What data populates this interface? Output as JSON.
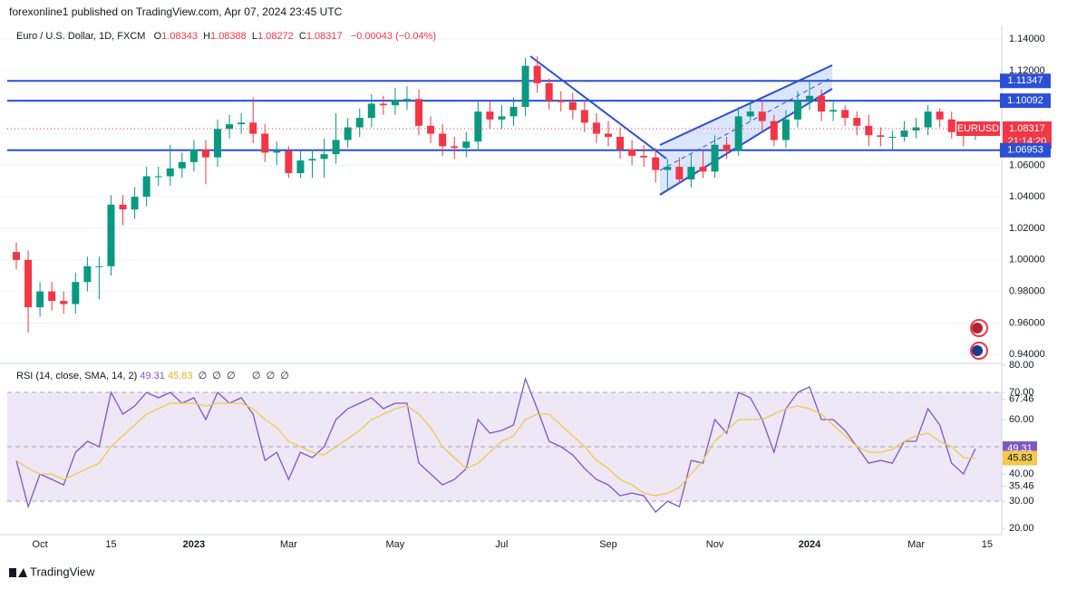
{
  "header": {
    "publisher": "forexonline1 published on TradingView.com, Apr 07, 2024 23:45 UTC",
    "footer": "TradingView"
  },
  "chart_data": [
    {
      "type": "candlestick",
      "title": "Euro / U.S. Dollar, 1D, FXCM",
      "legend": [
        {
          "label": "O",
          "value": 1.08343
        },
        {
          "label": "H",
          "value": 1.08388
        },
        {
          "label": "L",
          "value": 1.08272
        },
        {
          "label": "C",
          "value": 1.08317
        }
      ],
      "change": "−0.00043 (−0.04%)",
      "up_color": "#089981",
      "down_color": "#f23645",
      "level_color": "#2b4fd6",
      "categories": [
        null,
        null,
        "Oct",
        null,
        null,
        null,
        null,
        null,
        "15",
        null,
        null,
        null,
        null,
        null,
        null,
        "2023",
        null,
        null,
        null,
        null,
        null,
        null,
        null,
        "Mar",
        null,
        null,
        null,
        null,
        null,
        null,
        null,
        null,
        "May",
        null,
        null,
        null,
        null,
        null,
        null,
        null,
        null,
        "Jul",
        null,
        null,
        null,
        null,
        null,
        null,
        null,
        null,
        "Sep",
        null,
        null,
        null,
        null,
        null,
        null,
        null,
        null,
        "Nov",
        null,
        null,
        null,
        null,
        null,
        null,
        null,
        "2024",
        null,
        null,
        null,
        null,
        null,
        null,
        null,
        null,
        "Mar",
        null,
        null,
        null,
        null,
        null,
        "15"
      ],
      "open": [
        1.005,
        1.0,
        0.97,
        0.98,
        0.974,
        0.972,
        0.986,
        0.996,
        0.996,
        1.035,
        1.032,
        1.04,
        1.053,
        1.053,
        1.058,
        1.062,
        1.07,
        1.065,
        1.083,
        1.086,
        1.087,
        1.08,
        1.068,
        1.069,
        1.055,
        1.063,
        1.064,
        1.067,
        1.076,
        1.084,
        1.09,
        1.099,
        1.098,
        1.101,
        1.102,
        1.085,
        1.08,
        1.072,
        1.071,
        1.075,
        1.094,
        1.089,
        1.091,
        1.097,
        1.123,
        1.112,
        1.101,
        1.1,
        1.095,
        1.087,
        1.08,
        1.078,
        1.07,
        1.066,
        1.065,
        1.057,
        1.059,
        1.051,
        1.059,
        1.056,
        1.073,
        1.069,
        1.091,
        1.094,
        1.088,
        1.076,
        1.089,
        1.101,
        1.104,
        1.094,
        1.095,
        1.09,
        1.085,
        1.079,
        1.078,
        1.078,
        1.082,
        1.084,
        1.094,
        1.089,
        1.081,
        1.079,
        null
      ],
      "high": [
        1.011,
        1.006,
        0.986,
        0.986,
        0.98,
        0.992,
        1.002,
        1.002,
        1.041,
        1.041,
        1.046,
        1.059,
        1.059,
        1.073,
        1.068,
        1.076,
        1.076,
        1.089,
        1.092,
        1.093,
        1.103,
        1.086,
        1.075,
        1.072,
        1.069,
        1.07,
        1.077,
        1.093,
        1.09,
        1.096,
        1.105,
        1.104,
        1.109,
        1.11,
        1.108,
        1.091,
        1.086,
        1.078,
        1.081,
        1.1,
        1.101,
        1.098,
        1.103,
        1.128,
        1.129,
        1.115,
        1.107,
        1.106,
        1.101,
        1.093,
        1.088,
        1.084,
        1.076,
        1.073,
        1.071,
        1.064,
        1.065,
        1.067,
        1.069,
        1.079,
        1.078,
        1.097,
        1.1,
        1.101,
        1.092,
        1.095,
        1.107,
        1.114,
        1.108,
        1.1,
        1.098,
        1.094,
        1.092,
        1.084,
        1.082,
        1.088,
        1.09,
        1.098,
        1.096,
        1.094,
        1.084,
        1.088,
        null
      ],
      "low": [
        0.994,
        0.954,
        0.964,
        0.968,
        0.966,
        0.966,
        0.98,
        0.975,
        0.99,
        1.022,
        1.026,
        1.034,
        1.047,
        1.047,
        1.052,
        1.056,
        1.048,
        1.059,
        1.077,
        1.08,
        1.074,
        1.062,
        1.06,
        1.052,
        1.052,
        1.052,
        1.052,
        1.061,
        1.071,
        1.078,
        1.084,
        1.092,
        1.092,
        1.095,
        1.079,
        1.074,
        1.066,
        1.064,
        1.065,
        1.069,
        1.083,
        1.083,
        1.085,
        1.091,
        1.106,
        1.095,
        1.094,
        1.089,
        1.081,
        1.074,
        1.072,
        1.064,
        1.06,
        1.059,
        1.049,
        1.045,
        1.048,
        1.046,
        1.052,
        1.052,
        1.064,
        1.066,
        1.088,
        1.082,
        1.072,
        1.071,
        1.084,
        1.095,
        1.088,
        1.088,
        1.085,
        1.079,
        1.072,
        1.072,
        1.069,
        1.075,
        1.077,
        1.079,
        1.084,
        1.077,
        1.072,
        1.076,
        null
      ],
      "close": [
        1.0,
        0.97,
        0.98,
        0.974,
        0.972,
        0.986,
        0.996,
        0.996,
        1.035,
        1.032,
        1.04,
        1.053,
        1.053,
        1.058,
        1.062,
        1.07,
        1.065,
        1.083,
        1.086,
        1.087,
        1.08,
        1.068,
        1.069,
        1.055,
        1.063,
        1.064,
        1.067,
        1.076,
        1.084,
        1.09,
        1.099,
        1.098,
        1.101,
        1.102,
        1.085,
        1.08,
        1.072,
        1.071,
        1.075,
        1.094,
        1.089,
        1.091,
        1.097,
        1.123,
        1.112,
        1.101,
        1.1,
        1.095,
        1.087,
        1.08,
        1.078,
        1.07,
        1.066,
        1.065,
        1.057,
        1.059,
        1.051,
        1.059,
        1.056,
        1.073,
        1.069,
        1.091,
        1.094,
        1.088,
        1.076,
        1.089,
        1.101,
        1.104,
        1.094,
        1.095,
        1.09,
        1.085,
        1.079,
        1.078,
        1.078,
        1.082,
        1.084,
        1.094,
        1.089,
        1.081,
        1.079,
        1.083,
        null
      ],
      "levels": [
        1.11347,
        1.10092,
        1.06953
      ],
      "symbol": "EURUSD",
      "last_price": 1.08317,
      "countdown": "21:14:20",
      "ylim": [
        0.935,
        1.1475
      ],
      "yticks": [
        {
          "value": 1.14,
          "label": "1.14000"
        },
        {
          "value": 1.12,
          "label": "1.12000"
        },
        {
          "value": 1.1,
          "label": "1.10000"
        },
        {
          "value": 1.08,
          "label": "1.08000"
        },
        {
          "value": 1.06,
          "label": "1.06000"
        },
        {
          "value": 1.04,
          "label": "1.04000"
        },
        {
          "value": 1.02,
          "label": "1.02000"
        },
        {
          "value": 1.0,
          "label": "1.00000"
        },
        {
          "value": 0.98,
          "label": "0.98000"
        },
        {
          "value": 0.96,
          "label": "0.96000"
        },
        {
          "value": 0.94,
          "label": "0.94000"
        }
      ],
      "grid": true
    },
    {
      "type": "line",
      "title": "RSI (14, close, SMA, 14, 2)",
      "placeholders": [
        "∅  ∅  ∅",
        "∅  ∅  ∅"
      ],
      "series": [
        {
          "name": "RSI",
          "color": "#7e57c2",
          "values": [
            45,
            28,
            40,
            38,
            36,
            48,
            52,
            50,
            70,
            62,
            65,
            70,
            68,
            70,
            66,
            68,
            60,
            70,
            66,
            68,
            62,
            45,
            48,
            38,
            48,
            46,
            50,
            60,
            64,
            66,
            68,
            64,
            66,
            66,
            44,
            40,
            36,
            38,
            42,
            60,
            55,
            56,
            58,
            75,
            64,
            52,
            50,
            47,
            42,
            38,
            36,
            32,
            33,
            32,
            26,
            30,
            28,
            45,
            44,
            60,
            55,
            70,
            68,
            60,
            48,
            64,
            70,
            72,
            60,
            60,
            56,
            50,
            44,
            45,
            44,
            52,
            52,
            64,
            58,
            44,
            40,
            49.31,
            null
          ]
        },
        {
          "name": "SMA",
          "color": "#f2c94c",
          "values": [
            45,
            42,
            40,
            40,
            38,
            40,
            42,
            44,
            50,
            54,
            58,
            62,
            64,
            66,
            66,
            66,
            65,
            66,
            66,
            66,
            64,
            60,
            57,
            52,
            50,
            48,
            47,
            50,
            53,
            56,
            60,
            62,
            64,
            65,
            62,
            57,
            50,
            46,
            42,
            44,
            48,
            52,
            54,
            60,
            62,
            62,
            58,
            54,
            50,
            45,
            42,
            38,
            36,
            33,
            32,
            33,
            35,
            40,
            45,
            52,
            56,
            60,
            60,
            60,
            62,
            64,
            65,
            64,
            62,
            58,
            54,
            50,
            48,
            48,
            49,
            52,
            54,
            55,
            52,
            50,
            46,
            45.83,
            null
          ]
        }
      ],
      "bands": [
        70,
        50,
        30
      ],
      "band_color": "#ede7f6",
      "ylim": [
        17.7,
        80
      ],
      "yticks": [
        {
          "value": 80,
          "label": "80.00"
        },
        {
          "value": 70,
          "label": "70.00"
        },
        67.46,
        {
          "value": 60,
          "label": "60.00"
        },
        {
          "value": 40,
          "label": "40.00"
        },
        35.46,
        {
          "value": 30,
          "label": "30.00"
        },
        {
          "value": 20,
          "label": "20.00"
        }
      ]
    }
  ]
}
